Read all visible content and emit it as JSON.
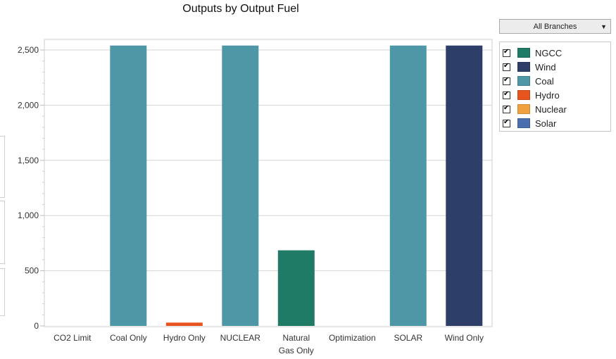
{
  "chart_data": {
    "type": "bar",
    "title": "Outputs by Output Fuel",
    "categories": [
      "CO2 Limit",
      "Coal Only",
      "Hydro Only",
      "NUCLEAR",
      "Natural\nGas Only",
      "Optimization",
      "SOLAR",
      "Wind Only"
    ],
    "series": [
      {
        "name": "NGCC",
        "color": "#1f7a66",
        "values": [
          0,
          0,
          0,
          0,
          685,
          0,
          0,
          0
        ]
      },
      {
        "name": "Wind",
        "color": "#2d3f68",
        "values": [
          0,
          0,
          0,
          0,
          0,
          0,
          0,
          2540
        ]
      },
      {
        "name": "Coal",
        "color": "#4e97a7",
        "values": [
          0,
          2540,
          0,
          2540,
          0,
          0,
          2540,
          0
        ]
      },
      {
        "name": "Hydro",
        "color": "#e8541e",
        "values": [
          0,
          0,
          30,
          0,
          0,
          0,
          0,
          0
        ]
      },
      {
        "name": "Nuclear",
        "color": "#f0a03c",
        "values": [
          0,
          0,
          0,
          0,
          0,
          0,
          0,
          0
        ]
      },
      {
        "name": "Solar",
        "color": "#4a6fae",
        "values": [
          0,
          0,
          0,
          0,
          0,
          0,
          0,
          0
        ]
      }
    ],
    "yticks": [
      0,
      500,
      1000,
      1500,
      2000,
      2500
    ],
    "ytick_labels": [
      "0",
      "500",
      "1,000",
      "1,500",
      "2,000",
      "2,500"
    ],
    "ylim": [
      0,
      2550
    ],
    "grid": true,
    "legend_position": "right",
    "xlabel": "",
    "ylabel": ""
  },
  "controls": {
    "branch_selector": "All Branches"
  }
}
